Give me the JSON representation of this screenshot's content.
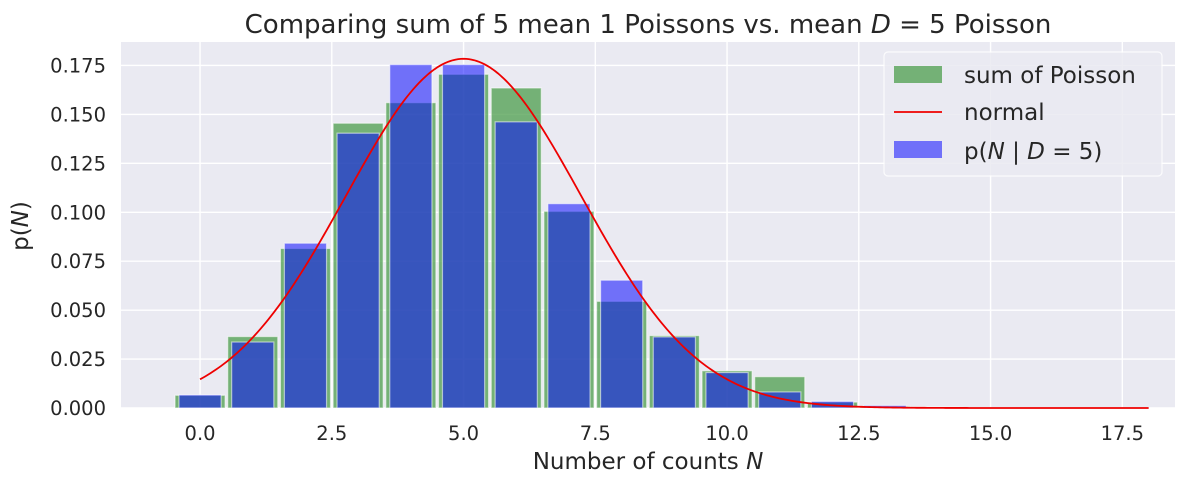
{
  "chart_data": {
    "type": "bar",
    "title": "Comparing sum of 5 mean 1 Poissons vs. mean D = 5 Poisson",
    "title_parts": [
      "Comparing sum of 5 mean 1 Poissons vs. mean ",
      "D",
      " = 5 Poisson"
    ],
    "xlabel": "Number of counts N",
    "xlabel_parts": [
      "Number of counts ",
      "N"
    ],
    "ylabel": "p(N)",
    "ylabel_parts": [
      "p(",
      "N",
      ")"
    ],
    "xlim": [
      -1.5,
      18.5
    ],
    "ylim": [
      0,
      0.187
    ],
    "xticks": [
      0.0,
      2.5,
      5.0,
      7.5,
      10.0,
      12.5,
      15.0,
      17.5
    ],
    "xtick_labels": [
      "0.0",
      "2.5",
      "5.0",
      "7.5",
      "10.0",
      "12.5",
      "15.0",
      "17.5"
    ],
    "yticks": [
      0.0,
      0.025,
      0.05,
      0.075,
      0.1,
      0.125,
      0.15,
      0.175
    ],
    "ytick_labels": [
      "0.000",
      "0.025",
      "0.050",
      "0.075",
      "0.100",
      "0.125",
      "0.150",
      "0.175"
    ],
    "grid": true,
    "legend_position": "top-right",
    "series": [
      {
        "name": "sum of Poisson",
        "kind": "bar",
        "color": "#4c9e4c",
        "bar_width": 0.95,
        "x": [
          0,
          1,
          2,
          3,
          4,
          5,
          6,
          7,
          8,
          9,
          10,
          11,
          12,
          13,
          14,
          15,
          16,
          17
        ],
        "values": [
          0.0065,
          0.0365,
          0.0815,
          0.1455,
          0.156,
          0.1705,
          0.1635,
          0.1005,
          0.0545,
          0.037,
          0.019,
          0.016,
          0.003,
          0.0008,
          0.0004,
          0.0002,
          0.0001,
          0.0001
        ]
      },
      {
        "name": "normal",
        "kind": "line",
        "color": "#ee0000",
        "mean": 5.0,
        "sd": 2.236,
        "x_range": [
          0,
          18
        ]
      },
      {
        "name": "p(N | D = 5)",
        "name_parts": [
          "p(",
          "N",
          " | ",
          "D",
          " = 5)"
        ],
        "kind": "bar",
        "color": "#0000ff",
        "bar_width": 0.8,
        "x": [
          0,
          1,
          2,
          3,
          4,
          5,
          6,
          7,
          8,
          9,
          10,
          11,
          12,
          13,
          14,
          15,
          16,
          17,
          18
        ],
        "values": [
          0.0067,
          0.0337,
          0.0842,
          0.1404,
          0.1755,
          0.1755,
          0.1462,
          0.1044,
          0.0653,
          0.0363,
          0.0181,
          0.0082,
          0.0034,
          0.0013,
          0.0005,
          0.0002,
          0.0001,
          0.0,
          0.0
        ]
      }
    ]
  }
}
